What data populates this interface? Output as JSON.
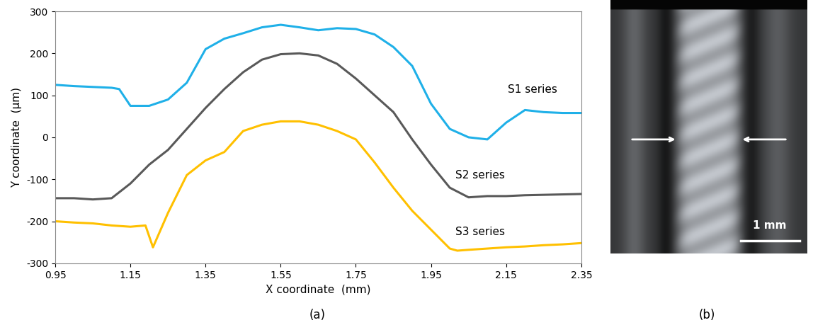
{
  "chart_data": {
    "type": "line",
    "x_label": "X coordinate  (mm)",
    "y_label": "Y coordinate  (µm)",
    "xlim": [
      0.95,
      2.35
    ],
    "xticks": [
      0.95,
      1.15,
      1.35,
      1.55,
      1.75,
      1.95,
      2.15,
      2.35
    ],
    "ylim": [
      -300,
      300
    ],
    "yticks": [
      -300,
      -200,
      -100,
      0,
      100,
      200,
      300
    ],
    "grid": false,
    "series": [
      {
        "name": "S1 series",
        "color": "#1fb0e8",
        "x": [
          0.95,
          1.0,
          1.05,
          1.1,
          1.12,
          1.15,
          1.2,
          1.25,
          1.3,
          1.35,
          1.4,
          1.45,
          1.5,
          1.55,
          1.6,
          1.65,
          1.7,
          1.75,
          1.8,
          1.85,
          1.9,
          1.95,
          2.0,
          2.05,
          2.1,
          2.15,
          2.2,
          2.25,
          2.3,
          2.35
        ],
        "values": [
          125,
          122,
          120,
          118,
          115,
          75,
          75,
          90,
          130,
          210,
          235,
          248,
          262,
          268,
          262,
          255,
          260,
          258,
          245,
          215,
          170,
          80,
          20,
          0,
          -5,
          35,
          65,
          60,
          58,
          58
        ]
      },
      {
        "name": "S2 series",
        "color": "#595959",
        "x": [
          0.95,
          1.0,
          1.05,
          1.1,
          1.15,
          1.2,
          1.25,
          1.3,
          1.35,
          1.4,
          1.45,
          1.5,
          1.55,
          1.6,
          1.65,
          1.7,
          1.75,
          1.8,
          1.85,
          1.9,
          1.95,
          2.0,
          2.05,
          2.1,
          2.15,
          2.2,
          2.25,
          2.3,
          2.35
        ],
        "values": [
          -145,
          -145,
          -148,
          -145,
          -110,
          -65,
          -30,
          20,
          70,
          115,
          155,
          185,
          198,
          200,
          195,
          175,
          140,
          100,
          60,
          -5,
          -65,
          -120,
          -143,
          -140,
          -140,
          -138,
          -137,
          -136,
          -135
        ]
      },
      {
        "name": "S3 series",
        "color": "#ffc000",
        "x": [
          0.95,
          1.0,
          1.05,
          1.1,
          1.15,
          1.19,
          1.21,
          1.25,
          1.3,
          1.35,
          1.4,
          1.45,
          1.5,
          1.55,
          1.6,
          1.65,
          1.7,
          1.75,
          1.8,
          1.85,
          1.9,
          1.95,
          2.0,
          2.02,
          2.05,
          2.1,
          2.15,
          2.2,
          2.25,
          2.3,
          2.35
        ],
        "values": [
          -200,
          -203,
          -205,
          -210,
          -213,
          -210,
          -262,
          -180,
          -90,
          -55,
          -35,
          15,
          30,
          38,
          38,
          30,
          15,
          -5,
          -60,
          -120,
          -175,
          -220,
          -265,
          -270,
          -268,
          -265,
          -262,
          -260,
          -257,
          -255,
          -252
        ]
      }
    ]
  },
  "figure": {
    "panel_labels": [
      "(a)",
      "(b)"
    ],
    "photo": {
      "scale_bar_label": "1 mm"
    }
  }
}
